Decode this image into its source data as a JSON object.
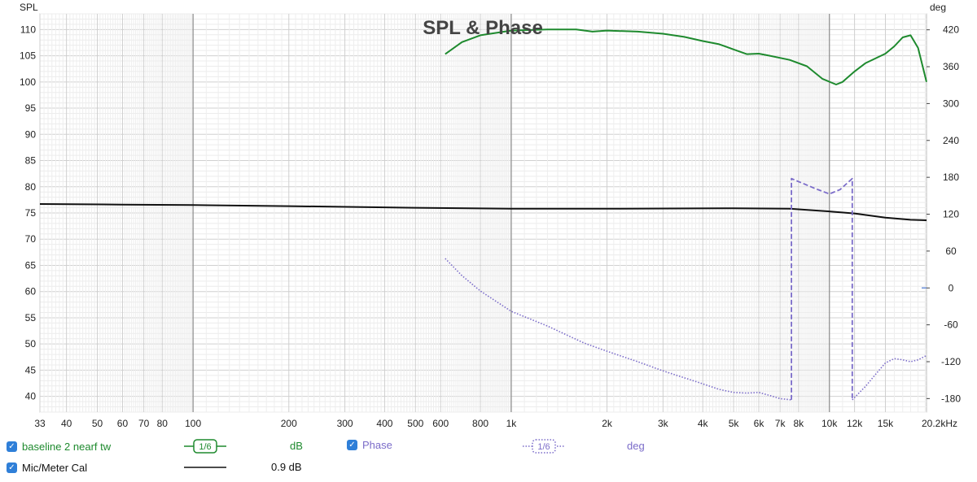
{
  "chart_data": {
    "type": "line",
    "title": "SPL & Phase",
    "left_axis_label": "SPL",
    "right_axis_label": "deg",
    "x_scale": "log",
    "xlim": [
      33,
      20200
    ],
    "ylim_left": [
      37,
      113
    ],
    "ylim_right": [
      -202,
      446
    ],
    "x_tick_labels": [
      {
        "v": 33,
        "t": "33"
      },
      {
        "v": 40,
        "t": "40"
      },
      {
        "v": 50,
        "t": "50"
      },
      {
        "v": 60,
        "t": "60"
      },
      {
        "v": 70,
        "t": "70"
      },
      {
        "v": 80,
        "t": "80"
      },
      {
        "v": 100,
        "t": "100"
      },
      {
        "v": 200,
        "t": "200"
      },
      {
        "v": 300,
        "t": "300"
      },
      {
        "v": 400,
        "t": "400"
      },
      {
        "v": 500,
        "t": "500"
      },
      {
        "v": 600,
        "t": "600"
      },
      {
        "v": 800,
        "t": "800"
      },
      {
        "v": 1000,
        "t": "1k"
      },
      {
        "v": 2000,
        "t": "2k"
      },
      {
        "v": 3000,
        "t": "3k"
      },
      {
        "v": 4000,
        "t": "4k"
      },
      {
        "v": 5000,
        "t": "5k"
      },
      {
        "v": 6000,
        "t": "6k"
      },
      {
        "v": 7000,
        "t": "7k"
      },
      {
        "v": 8000,
        "t": "8k"
      },
      {
        "v": 10000,
        "t": "10k"
      },
      {
        "v": 12000,
        "t": "12k"
      },
      {
        "v": 15000,
        "t": "15k"
      },
      {
        "v": 20200,
        "t": "20.2kHz"
      }
    ],
    "y_left_ticks": [
      40,
      45,
      50,
      55,
      60,
      65,
      70,
      75,
      80,
      85,
      90,
      95,
      100,
      105,
      110
    ],
    "y_right_ticks": [
      -180,
      -120,
      -60,
      0,
      60,
      120,
      180,
      240,
      300,
      360,
      420
    ],
    "grid": true,
    "series": [
      {
        "name": "baseline 2 nearf tw",
        "axis": "left",
        "color": "#1e8a2e",
        "style": "solid",
        "x": [
          620,
          700,
          800,
          1000,
          1300,
          1600,
          1800,
          2000,
          2500,
          3000,
          3500,
          4000,
          4500,
          5000,
          5500,
          6000,
          6500,
          7500,
          8500,
          9500,
          10500,
          11000,
          12000,
          13000,
          15000,
          16000,
          17000,
          18000,
          19000,
          20200
        ],
        "values": [
          105.3,
          107.6,
          108.9,
          109.8,
          110,
          110,
          109.6,
          109.8,
          109.6,
          109.2,
          108.6,
          107.8,
          107.2,
          106.2,
          105.3,
          105.4,
          105,
          104.2,
          103,
          100.6,
          99.5,
          100,
          102,
          103.6,
          105.4,
          106.8,
          108.5,
          108.9,
          106.5,
          100
        ]
      },
      {
        "name": "Mic/Meter Cal",
        "axis": "left",
        "color": "#111111",
        "style": "solid",
        "x": [
          33,
          60,
          100,
          200,
          500,
          1000,
          2000,
          5000,
          7500,
          8000,
          10000,
          12000,
          15000,
          18000,
          20200
        ],
        "values": [
          76.7,
          76.6,
          76.5,
          76.3,
          76.0,
          75.8,
          75.8,
          75.9,
          75.8,
          75.7,
          75.3,
          74.9,
          74.1,
          73.7,
          73.6
        ]
      },
      {
        "name": "Phase",
        "axis": "right",
        "color": "#7b6cc9",
        "style": "dotted",
        "x": [
          620,
          700,
          800,
          1000,
          1300,
          1700,
          2000,
          2500,
          3000,
          4000,
          4500,
          5000,
          5500,
          6000,
          6500,
          7000,
          7600
        ],
        "values": [
          48,
          20,
          -5,
          -38,
          -62,
          -90,
          -103,
          -120,
          -135,
          -156,
          -165,
          -170,
          -171,
          -170,
          -175,
          -180,
          -182
        ]
      },
      {
        "name": "Phase (wrapped)",
        "axis": "right",
        "color": "#7b6cc9",
        "style": "dashed",
        "x": [
          7600,
          7600,
          8000,
          9000,
          10000,
          10800,
          11800,
          11800
        ],
        "values": [
          -182,
          178,
          173,
          162,
          153,
          160,
          178,
          -182
        ]
      },
      {
        "name": "Phase (tail)",
        "axis": "right",
        "color": "#7b6cc9",
        "style": "dotted",
        "x": [
          11800,
          13000,
          14000,
          15000,
          16000,
          17000,
          18000,
          19000,
          20200
        ],
        "values": [
          -182,
          -160,
          -140,
          -122,
          -115,
          -117,
          -120,
          -117,
          -110
        ]
      }
    ]
  },
  "legend": {
    "row1": {
      "checkbox": "checked",
      "label": "baseline 2 nearf tw",
      "smoothing_badge": "1/6",
      "unit": "dB",
      "color": "#1e8a2e",
      "phase_checkbox": "checked",
      "phase_label": "Phase",
      "phase_smoothing_badge": "1/6",
      "phase_unit": "deg",
      "phase_color": "#7b6cc9"
    },
    "row2": {
      "checkbox": "checked",
      "label": "Mic/Meter Cal",
      "offset": "0.9 dB"
    }
  }
}
